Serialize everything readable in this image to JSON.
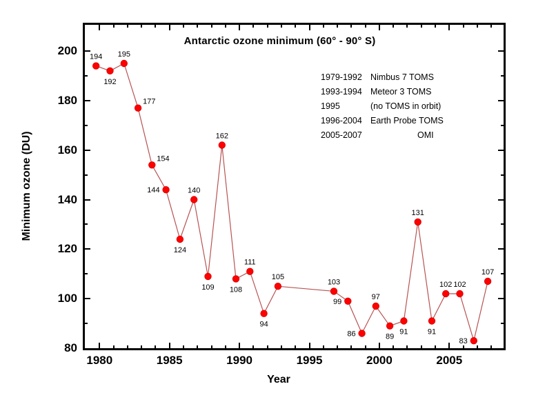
{
  "chart_data": {
    "type": "line",
    "title": "Antarctic ozone minimum (60° - 90° S)",
    "xlabel": "Year",
    "ylabel": "Minimum ozone (DU)",
    "xlim": [
      1978.95,
      2008.88
    ],
    "ylim": [
      80,
      210.6
    ],
    "x_ticks": [
      1980,
      1985,
      1990,
      1995,
      2000,
      2005
    ],
    "y_ticks": [
      80,
      100,
      120,
      140,
      160,
      180,
      200
    ],
    "x_minor_step": 1,
    "y_minor_step": 10,
    "grid": false,
    "x_plot_offset": 0.75,
    "missing_years": [
      1993,
      1994,
      1995
    ],
    "points": [
      {
        "year": 1979,
        "value": 194,
        "label_pos": "above"
      },
      {
        "year": 1980,
        "value": 192,
        "label_pos": "below"
      },
      {
        "year": 1981,
        "value": 195,
        "label_pos": "above"
      },
      {
        "year": 1982,
        "value": 177,
        "label_pos": "above-right"
      },
      {
        "year": 1983,
        "value": 154,
        "label_pos": "above-right"
      },
      {
        "year": 1984,
        "value": 144,
        "label_pos": "left"
      },
      {
        "year": 1985,
        "value": 124,
        "label_pos": "below"
      },
      {
        "year": 1986,
        "value": 140,
        "label_pos": "above"
      },
      {
        "year": 1987,
        "value": 109,
        "label_pos": "below"
      },
      {
        "year": 1988,
        "value": 162,
        "label_pos": "above"
      },
      {
        "year": 1989,
        "value": 108,
        "label_pos": "below"
      },
      {
        "year": 1990,
        "value": 111,
        "label_pos": "above"
      },
      {
        "year": 1991,
        "value": 94,
        "label_pos": "below"
      },
      {
        "year": 1992,
        "value": 105,
        "label_pos": "above"
      },
      {
        "year": 1996,
        "value": 103,
        "label_pos": "above"
      },
      {
        "year": 1997,
        "value": 99,
        "label_pos": "left"
      },
      {
        "year": 1998,
        "value": 86,
        "label_pos": "left"
      },
      {
        "year": 1999,
        "value": 97,
        "label_pos": "above"
      },
      {
        "year": 2000,
        "value": 89,
        "label_pos": "below"
      },
      {
        "year": 2001,
        "value": 91,
        "label_pos": "below"
      },
      {
        "year": 2002,
        "value": 131,
        "label_pos": "above"
      },
      {
        "year": 2003,
        "value": 91,
        "label_pos": "below"
      },
      {
        "year": 2004,
        "value": 102,
        "label_pos": "above"
      },
      {
        "year": 2005,
        "value": 102,
        "label_pos": "above"
      },
      {
        "year": 2006,
        "value": 83,
        "label_pos": "left"
      },
      {
        "year": 2007,
        "value": 107,
        "label_pos": "above"
      }
    ],
    "colors": {
      "marker": "#ff0000",
      "marker_edge": "#dd0000",
      "line": "#b85252",
      "axis": "#000000",
      "text": "#000000",
      "background": "#ffffff"
    },
    "legend_position": "upper-right-inside"
  },
  "legend": {
    "rows": [
      {
        "range": "1979-1992",
        "name": "Nimbus 7 TOMS",
        "center": false
      },
      {
        "range": "1993-1994",
        "name": "Meteor 3 TOMS",
        "center": false
      },
      {
        "range": "1995",
        "name": "(no TOMS in orbit)",
        "center": false
      },
      {
        "range": "1996-2004",
        "name": "Earth Probe TOMS",
        "center": false
      },
      {
        "range": "2005-2007",
        "name": "OMI",
        "center": true
      }
    ]
  }
}
